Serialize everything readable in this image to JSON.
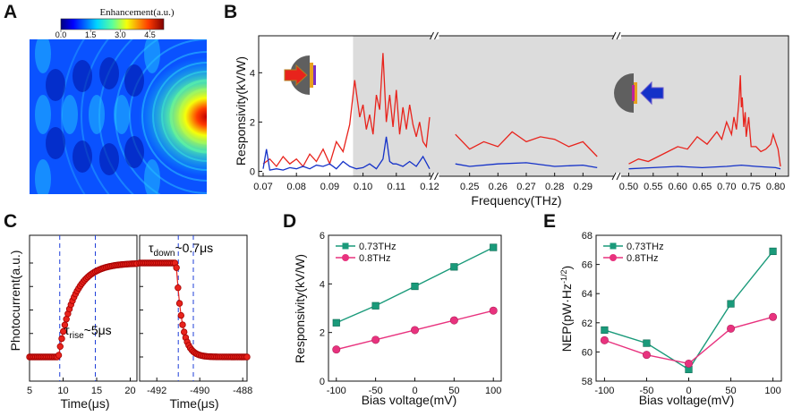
{
  "panel_letters": [
    "A",
    "B",
    "C",
    "D",
    "E"
  ],
  "colors": {
    "red": "#e8231c",
    "blue": "#1431c8",
    "green": "#1a9a7a",
    "pink": "#e8327e",
    "shade": "#dcdcdc",
    "dash": "#1f3fd8"
  },
  "chart_data": [
    {
      "panel": "A",
      "type": "heatmap",
      "title": "Enhancement(a.u.)",
      "colorbar_ticks": [
        "0.0",
        "1.5",
        "3.0",
        "4.5"
      ],
      "colorbar_range": [
        0,
        5.2
      ]
    },
    {
      "panel": "B",
      "type": "line",
      "xlabel": "Frequency(THz)",
      "ylabel": "Responsivity(kV/W)",
      "ylim": [
        -0.2,
        5.5
      ],
      "yticks": [
        0,
        2,
        4
      ],
      "segments": [
        {
          "range": [
            0.07,
            0.12
          ],
          "ticks": [
            "0.07",
            "0.08",
            "0.09",
            "0.10",
            "0.11",
            "0.12"
          ]
        },
        {
          "range": [
            0.24,
            0.3
          ],
          "ticks": [
            "0.25",
            "0.26",
            "0.27",
            "0.28",
            "0.29"
          ]
        },
        {
          "range": [
            0.49,
            0.81
          ],
          "ticks": [
            "0.50",
            "0.55",
            "0.60",
            "0.65",
            "0.70",
            "0.75",
            "0.80"
          ]
        }
      ],
      "shaded_from": 0.097,
      "series": [
        {
          "name": "red",
          "x": [
            0.07,
            0.072,
            0.074,
            0.076,
            0.078,
            0.08,
            0.082,
            0.084,
            0.086,
            0.088,
            0.09,
            0.092,
            0.094,
            0.096,
            0.0975,
            0.099,
            0.1,
            0.101,
            0.102,
            0.103,
            0.104,
            0.105,
            0.106,
            0.107,
            0.108,
            0.109,
            0.11,
            0.111,
            0.112,
            0.113,
            0.114,
            0.115,
            0.116,
            0.117,
            0.118,
            0.119,
            0.12,
            0.245,
            0.25,
            0.255,
            0.26,
            0.265,
            0.27,
            0.275,
            0.28,
            0.285,
            0.29,
            0.295,
            0.5,
            0.52,
            0.54,
            0.56,
            0.58,
            0.6,
            0.62,
            0.64,
            0.66,
            0.68,
            0.69,
            0.7,
            0.71,
            0.715,
            0.72,
            0.725,
            0.728,
            0.73,
            0.732,
            0.735,
            0.738,
            0.74,
            0.745,
            0.75,
            0.76,
            0.77,
            0.78,
            0.79,
            0.795,
            0.8,
            0.805,
            0.81
          ],
          "values": [
            0.3,
            0.5,
            0.2,
            0.6,
            0.3,
            0.5,
            0.2,
            0.7,
            0.4,
            0.9,
            0.3,
            1.2,
            0.8,
            1.9,
            3.7,
            2.2,
            2.7,
            1.7,
            2.3,
            1.5,
            3.1,
            2.5,
            4.8,
            2.0,
            3.1,
            1.8,
            3.3,
            1.5,
            2.6,
            1.7,
            2.7,
            1.9,
            1.4,
            2.0,
            1.2,
            1.0,
            2.2,
            1.5,
            0.9,
            1.2,
            1.0,
            1.6,
            1.2,
            1.4,
            1.3,
            1.0,
            1.2,
            0.6,
            0.3,
            0.5,
            0.4,
            0.6,
            0.8,
            1.0,
            0.9,
            1.4,
            1.1,
            1.6,
            1.3,
            2.0,
            1.5,
            2.2,
            1.7,
            2.8,
            3.9,
            2.6,
            3.0,
            1.8,
            2.4,
            1.4,
            2.2,
            1.0,
            1.0,
            0.8,
            0.9,
            1.1,
            1.5,
            1.2,
            0.9,
            0.2
          ]
        },
        {
          "name": "blue",
          "x": [
            0.07,
            0.071,
            0.072,
            0.074,
            0.076,
            0.078,
            0.08,
            0.082,
            0.084,
            0.086,
            0.088,
            0.09,
            0.092,
            0.094,
            0.096,
            0.098,
            0.1,
            0.102,
            0.104,
            0.106,
            0.107,
            0.108,
            0.109,
            0.11,
            0.112,
            0.114,
            0.116,
            0.118,
            0.12,
            0.245,
            0.25,
            0.26,
            0.27,
            0.28,
            0.29,
            0.295,
            0.5,
            0.55,
            0.6,
            0.65,
            0.7,
            0.73,
            0.76,
            0.8,
            0.81
          ],
          "values": [
            0.1,
            0.9,
            0.05,
            0.1,
            0.05,
            0.15,
            0.1,
            0.2,
            0.1,
            0.25,
            0.2,
            0.3,
            0.1,
            0.4,
            0.2,
            0.1,
            0.15,
            0.3,
            0.1,
            0.5,
            1.4,
            0.4,
            0.3,
            0.3,
            0.2,
            0.4,
            0.2,
            0.6,
            0.1,
            0.3,
            0.2,
            0.3,
            0.35,
            0.2,
            0.25,
            0.15,
            0.1,
            0.15,
            0.2,
            0.15,
            0.2,
            0.25,
            0.2,
            0.15,
            0.1
          ]
        }
      ]
    },
    {
      "panel": "C",
      "type": "scatter",
      "ylabel": "Photocurrent(a.u.)",
      "subplots": [
        {
          "name": "rise",
          "xlabel": "Time(μs)",
          "xlim": [
            5,
            21
          ],
          "xticks": [
            "5",
            "10",
            "15",
            "20"
          ],
          "dashed_x": [
            9.5,
            14.8
          ],
          "annotation": "τrise~5μs",
          "tau_symbol": "τ",
          "tau_sub": "rise",
          "tau_value": "~5μs"
        },
        {
          "name": "fall",
          "xlabel": "Time(μs)",
          "xlim": [
            -492.8,
            -487.8
          ],
          "xticks": [
            "-492",
            "-490",
            "-488"
          ],
          "dashed_x": [
            -491.0,
            -490.3
          ],
          "annotation": "τdown~0.7μs",
          "tau_symbol": "τ",
          "tau_sub": "down",
          "tau_value": "~0.7μs"
        }
      ]
    },
    {
      "panel": "D",
      "type": "line",
      "xlabel": "Bias voltage(mV)",
      "ylabel": "Responsivity(kV/W)",
      "ylim": [
        0,
        6
      ],
      "xlim": [
        -110,
        110
      ],
      "x": [
        -100,
        -50,
        0,
        50,
        100
      ],
      "xticks": [
        "-100",
        "-50",
        "0",
        "50",
        "100"
      ],
      "yticks": [
        "0",
        "2",
        "4",
        "6"
      ],
      "series": [
        {
          "name": "0.73THz",
          "values": [
            2.4,
            3.1,
            3.9,
            4.7,
            5.5
          ]
        },
        {
          "name": "0.8THz",
          "values": [
            1.3,
            1.7,
            2.1,
            2.5,
            2.9
          ]
        }
      ]
    },
    {
      "panel": "E",
      "type": "line",
      "xlabel": "Bias voltage(mV)",
      "ylabel": "NEP(pW·Hz",
      "ylabel_sup": "-1/2",
      "ylabel_end": ")",
      "ylim": [
        58,
        68
      ],
      "xlim": [
        -110,
        110
      ],
      "x": [
        -100,
        -50,
        0,
        50,
        100
      ],
      "xticks": [
        "-100",
        "-50",
        "0",
        "50",
        "100"
      ],
      "yticks": [
        "58",
        "60",
        "62",
        "64",
        "66",
        "68"
      ],
      "series": [
        {
          "name": "0.73THz",
          "values": [
            61.5,
            60.6,
            58.8,
            63.3,
            66.9
          ]
        },
        {
          "name": "0.8THz",
          "values": [
            60.8,
            59.8,
            59.2,
            61.6,
            62.4
          ]
        }
      ]
    }
  ]
}
